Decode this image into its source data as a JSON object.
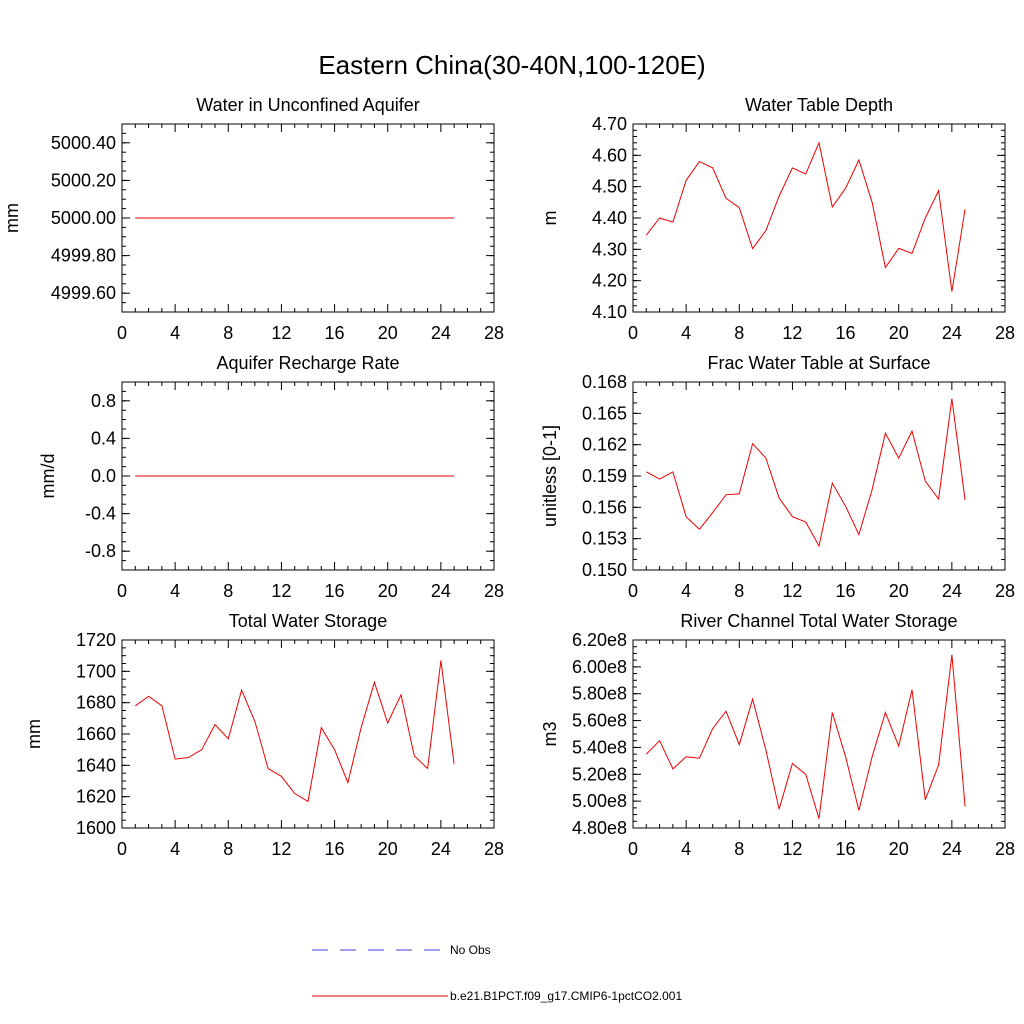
{
  "figure": {
    "title": "Eastern China(30-40N,100-120E)"
  },
  "legend": [
    {
      "label": "No Obs",
      "style": "dashed",
      "color": "#3b3bd6"
    },
    {
      "label": "b.e21.B1PCT.f09_g17.CMIP6-1pctCO2.001",
      "style": "solid",
      "color": "#ee0000"
    }
  ],
  "colors": {
    "series": "#ee0000",
    "obs": "#3b3bd6",
    "axis": "#000000"
  },
  "chart_data": [
    {
      "type": "line",
      "title": "Water in Unconfined Aquifer",
      "ylabel": "mm",
      "xlim": [
        0,
        28
      ],
      "xticks": [
        0,
        4,
        8,
        12,
        16,
        20,
        24,
        28
      ],
      "xtick_labels": [
        "0",
        "4",
        "8",
        "12",
        "16",
        "20",
        "24",
        "28"
      ],
      "ylim": [
        4999.5,
        5000.5
      ],
      "yticks": [
        4999.6,
        4999.8,
        5000.0,
        5000.2,
        5000.4
      ],
      "ytick_labels": [
        "4999.60",
        "4999.80",
        "5000.00",
        "5000.20",
        "5000.40"
      ],
      "yminor": 0.05,
      "series": [
        {
          "x": [
            1,
            2,
            3,
            4,
            5,
            6,
            7,
            8,
            9,
            10,
            11,
            12,
            13,
            14,
            15,
            16,
            17,
            18,
            19,
            20,
            21,
            22,
            23,
            24,
            25
          ],
          "y": [
            5000,
            5000,
            5000,
            5000,
            5000,
            5000,
            5000,
            5000,
            5000,
            5000,
            5000,
            5000,
            5000,
            5000,
            5000,
            5000,
            5000,
            5000,
            5000,
            5000,
            5000,
            5000,
            5000,
            5000,
            5000
          ]
        }
      ]
    },
    {
      "type": "line",
      "title": "Water Table Depth",
      "ylabel": "m",
      "xlim": [
        0,
        28
      ],
      "xticks": [
        0,
        4,
        8,
        12,
        16,
        20,
        24,
        28
      ],
      "xtick_labels": [
        "0",
        "4",
        "8",
        "12",
        "16",
        "20",
        "24",
        "28"
      ],
      "ylim": [
        4.1,
        4.7
      ],
      "yticks": [
        4.1,
        4.2,
        4.3,
        4.4,
        4.5,
        4.6,
        4.7
      ],
      "ytick_labels": [
        "4.10",
        "4.20",
        "4.30",
        "4.40",
        "4.50",
        "4.60",
        "4.70"
      ],
      "yminor": 0.02,
      "series": [
        {
          "x": [
            1,
            2,
            3,
            4,
            5,
            6,
            7,
            8,
            9,
            10,
            11,
            12,
            13,
            14,
            15,
            16,
            17,
            18,
            19,
            20,
            21,
            22,
            23,
            24,
            25
          ],
          "y": [
            4.345,
            4.4,
            4.387,
            4.52,
            4.58,
            4.56,
            4.463,
            4.433,
            4.302,
            4.36,
            4.47,
            4.56,
            4.54,
            4.64,
            4.435,
            4.495,
            4.585,
            4.45,
            4.242,
            4.303,
            4.287,
            4.4,
            4.487,
            4.165,
            4.428
          ]
        }
      ]
    },
    {
      "type": "line",
      "title": "Aquifer Recharge Rate",
      "ylabel": "mm/d",
      "xlim": [
        0,
        28
      ],
      "xticks": [
        0,
        4,
        8,
        12,
        16,
        20,
        24,
        28
      ],
      "xtick_labels": [
        "0",
        "4",
        "8",
        "12",
        "16",
        "20",
        "24",
        "28"
      ],
      "ylim": [
        -1.0,
        1.0
      ],
      "yticks": [
        -0.8,
        -0.4,
        0.0,
        0.4,
        0.8
      ],
      "ytick_labels": [
        "-0.8",
        "-0.4",
        "0.0",
        "0.4",
        "0.8"
      ],
      "yminor": 0.1,
      "series": [
        {
          "x": [
            1,
            2,
            3,
            4,
            5,
            6,
            7,
            8,
            9,
            10,
            11,
            12,
            13,
            14,
            15,
            16,
            17,
            18,
            19,
            20,
            21,
            22,
            23,
            24,
            25
          ],
          "y": [
            0,
            0,
            0,
            0,
            0,
            0,
            0,
            0,
            0,
            0,
            0,
            0,
            0,
            0,
            0,
            0,
            0,
            0,
            0,
            0,
            0,
            0,
            0,
            0,
            0
          ]
        }
      ]
    },
    {
      "type": "line",
      "title": "Frac Water Table at Surface",
      "ylabel": "unitless [0-1]",
      "xlim": [
        0,
        28
      ],
      "xticks": [
        0,
        4,
        8,
        12,
        16,
        20,
        24,
        28
      ],
      "xtick_labels": [
        "0",
        "4",
        "8",
        "12",
        "16",
        "20",
        "24",
        "28"
      ],
      "ylim": [
        0.15,
        0.168
      ],
      "yticks": [
        0.15,
        0.153,
        0.156,
        0.159,
        0.162,
        0.165,
        0.168
      ],
      "ytick_labels": [
        "0.150",
        "0.153",
        "0.156",
        "0.159",
        "0.162",
        "0.165",
        "0.168"
      ],
      "yminor": 0.001,
      "series": [
        {
          "x": [
            1,
            2,
            3,
            4,
            5,
            6,
            7,
            8,
            9,
            10,
            11,
            12,
            13,
            14,
            15,
            16,
            17,
            18,
            19,
            20,
            21,
            22,
            23,
            24,
            25
          ],
          "y": [
            0.1594,
            0.1587,
            0.1594,
            0.1551,
            0.1539,
            0.1555,
            0.1572,
            0.1573,
            0.1621,
            0.1607,
            0.1569,
            0.1551,
            0.1546,
            0.1523,
            0.1583,
            0.1561,
            0.1534,
            0.1577,
            0.1631,
            0.1607,
            0.1633,
            0.1585,
            0.1568,
            0.1664,
            0.1567
          ]
        }
      ]
    },
    {
      "type": "line",
      "title": "Total Water Storage",
      "ylabel": "mm",
      "xlim": [
        0,
        28
      ],
      "xticks": [
        0,
        4,
        8,
        12,
        16,
        20,
        24,
        28
      ],
      "xtick_labels": [
        "0",
        "4",
        "8",
        "12",
        "16",
        "20",
        "24",
        "28"
      ],
      "ylim": [
        1600,
        1720
      ],
      "yticks": [
        1600,
        1620,
        1640,
        1660,
        1680,
        1700,
        1720
      ],
      "ytick_labels": [
        "1600",
        "1620",
        "1640",
        "1660",
        "1680",
        "1700",
        "1720"
      ],
      "yminor": 5,
      "series": [
        {
          "x": [
            1,
            2,
            3,
            4,
            5,
            6,
            7,
            8,
            9,
            10,
            11,
            12,
            13,
            14,
            15,
            16,
            17,
            18,
            19,
            20,
            21,
            22,
            23,
            24,
            25
          ],
          "y": [
            1678,
            1684,
            1678,
            1644,
            1645,
            1650,
            1666,
            1657,
            1688,
            1668,
            1638,
            1633,
            1622,
            1617,
            1664,
            1650,
            1629,
            1664,
            1693,
            1667,
            1685,
            1646,
            1638,
            1707,
            1641
          ]
        }
      ]
    },
    {
      "type": "line",
      "title": "River Channel Total Water Storage",
      "ylabel": "m3",
      "xlim": [
        0,
        28
      ],
      "xticks": [
        0,
        4,
        8,
        12,
        16,
        20,
        24,
        28
      ],
      "xtick_labels": [
        "0",
        "4",
        "8",
        "12",
        "16",
        "20",
        "24",
        "28"
      ],
      "ylim": [
        480000000.0,
        620000000.0
      ],
      "yticks": [
        480000000.0,
        500000000.0,
        520000000.0,
        540000000.0,
        560000000.0,
        580000000.0,
        600000000.0,
        620000000.0
      ],
      "ytick_labels": [
        "4.80e8",
        "5.00e8",
        "5.20e8",
        "5.40e8",
        "5.60e8",
        "5.80e8",
        "6.00e8",
        "6.20e8"
      ],
      "yminor": 5000000.0,
      "series": [
        {
          "x": [
            1,
            2,
            3,
            4,
            5,
            6,
            7,
            8,
            9,
            10,
            11,
            12,
            13,
            14,
            15,
            16,
            17,
            18,
            19,
            20,
            21,
            22,
            23,
            24,
            25
          ],
          "y": [
            535000000.0,
            545000000.0,
            524000000.0,
            533000000.0,
            532000000.0,
            554000000.0,
            567000000.0,
            542000000.0,
            576000000.0,
            538000000.0,
            494000000.0,
            528000000.0,
            520000000.0,
            487000000.0,
            566000000.0,
            533000000.0,
            493000000.0,
            533000000.0,
            566000000.0,
            541000000.0,
            583000000.0,
            501000000.0,
            527000000.0,
            609000000.0,
            496000000.0
          ]
        }
      ]
    }
  ]
}
